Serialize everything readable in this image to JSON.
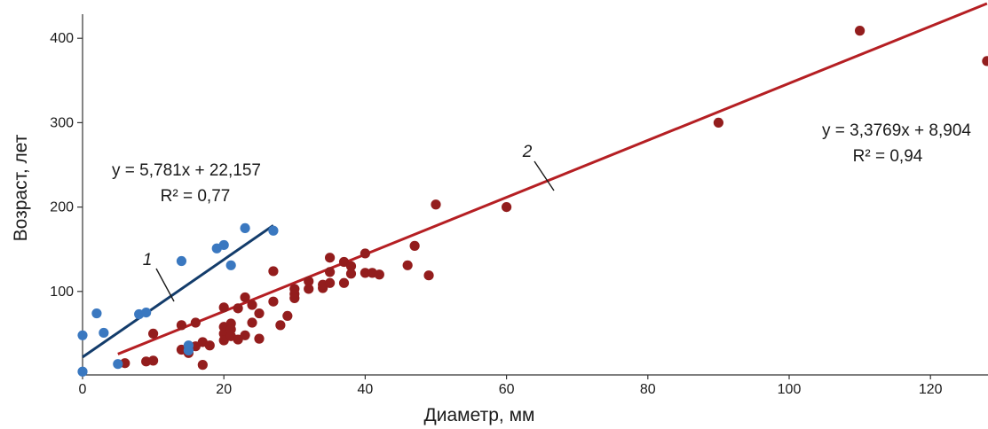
{
  "chart_data": {
    "type": "scatter",
    "xlabel": "Диаметр, мм",
    "ylabel": "Возраст, лет",
    "xlim": [
      0,
      128
    ],
    "ylim": [
      0,
      430
    ],
    "x_ticks": [
      0,
      20,
      40,
      60,
      80,
      100,
      120
    ],
    "y_ticks": [
      100,
      200,
      300,
      400
    ],
    "grid": false,
    "colors": {
      "series1": "#3a78c0",
      "series2": "#931d1d",
      "trend1": "#133c6b",
      "trend2": "#b51f23",
      "axis": "#333333"
    },
    "series": [
      {
        "label": "1",
        "points": [
          [
            0,
            48
          ],
          [
            0,
            5
          ],
          [
            2,
            74
          ],
          [
            3,
            51
          ],
          [
            5,
            14
          ],
          [
            8,
            73
          ],
          [
            9,
            75
          ],
          [
            14,
            136
          ],
          [
            15,
            36
          ],
          [
            15,
            30
          ],
          [
            19,
            151
          ],
          [
            20,
            155
          ],
          [
            21,
            131
          ],
          [
            23,
            175
          ],
          [
            27,
            172
          ]
        ],
        "trendline": {
          "equation": "y = 5,781x + 22,157",
          "r2": "R² = 0,77",
          "x_range": [
            0,
            27
          ]
        }
      },
      {
        "label": "2",
        "points": [
          [
            6,
            15
          ],
          [
            9,
            17
          ],
          [
            10,
            50
          ],
          [
            10,
            18
          ],
          [
            14,
            60
          ],
          [
            14,
            31
          ],
          [
            15,
            27
          ],
          [
            16,
            63
          ],
          [
            16,
            35
          ],
          [
            17,
            40
          ],
          [
            17,
            13
          ],
          [
            18,
            36
          ],
          [
            20,
            81
          ],
          [
            20,
            58
          ],
          [
            20,
            50
          ],
          [
            20,
            42
          ],
          [
            21,
            62
          ],
          [
            21,
            55
          ],
          [
            21,
            47
          ],
          [
            22,
            80
          ],
          [
            22,
            43
          ],
          [
            23,
            93
          ],
          [
            23,
            48
          ],
          [
            24,
            84
          ],
          [
            24,
            63
          ],
          [
            25,
            74
          ],
          [
            25,
            44
          ],
          [
            27,
            124
          ],
          [
            27,
            88
          ],
          [
            28,
            60
          ],
          [
            29,
            71
          ],
          [
            30,
            103
          ],
          [
            30,
            97
          ],
          [
            30,
            92
          ],
          [
            32,
            112
          ],
          [
            32,
            103
          ],
          [
            34,
            104
          ],
          [
            34,
            108
          ],
          [
            35,
            140
          ],
          [
            35,
            123
          ],
          [
            35,
            110
          ],
          [
            37,
            135
          ],
          [
            37,
            110
          ],
          [
            38,
            130
          ],
          [
            38,
            121
          ],
          [
            40,
            145
          ],
          [
            40,
            122
          ],
          [
            41,
            122
          ],
          [
            42,
            120
          ],
          [
            46,
            131
          ],
          [
            47,
            154
          ],
          [
            49,
            119
          ],
          [
            50,
            203
          ],
          [
            60,
            200
          ],
          [
            90,
            300
          ],
          [
            110,
            409
          ],
          [
            128,
            373
          ]
        ],
        "trendline": {
          "equation": "y = 3,3769x + 8,904",
          "r2": "R² = 0,94",
          "x_range": [
            5,
            128
          ]
        }
      }
    ]
  }
}
